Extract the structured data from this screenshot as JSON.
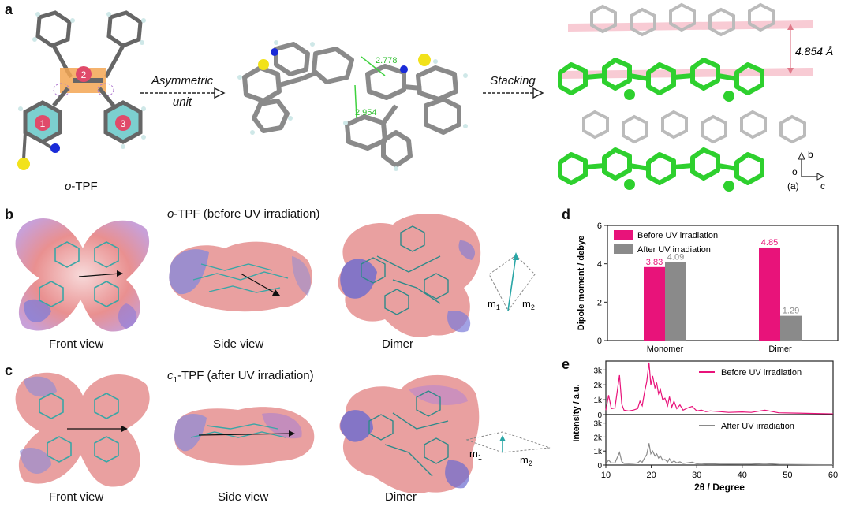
{
  "panels": {
    "a": {
      "label": "a",
      "molecule_caption": "o-TPF",
      "molecule_caption_italic": "o",
      "molecule_caption_rest": "-TPF",
      "ring_labels": [
        "1",
        "2",
        "3"
      ],
      "arrow1_label_line1": "Asymmetric",
      "arrow1_label_line2": "unit",
      "distance1": "2.778",
      "distance2": "2.954",
      "arrow2_label": "Stacking",
      "stack_distance": "4.854",
      "stack_distance_unit": "Å",
      "axis_b": "b",
      "axis_origin": "o",
      "axis_a": "(a)",
      "axis_c": "c"
    },
    "b": {
      "label": "b",
      "title_italic": "o",
      "title_rest": "-TPF (before UV irradiation)",
      "captions": [
        "Front view",
        "Side view",
        "Dimer"
      ],
      "m1": "m",
      "m1_sub": "1",
      "m2": "m",
      "m2_sub": "2"
    },
    "c": {
      "label": "c",
      "title_italic": "c",
      "title_sub": "1",
      "title_rest": "-TPF (after UV irradiation)",
      "captions": [
        "Front view",
        "Side view",
        "Dimer"
      ],
      "m1": "m",
      "m1_sub": "1",
      "m2": "m",
      "m2_sub": "2"
    },
    "d": {
      "label": "d"
    },
    "e": {
      "label": "e"
    }
  },
  "chart_data": [
    {
      "type": "bar",
      "panel": "d",
      "categories": [
        "Monomer",
        "Dimer"
      ],
      "series": [
        {
          "name": "Before UV irradiation",
          "values": [
            3.83,
            4.85
          ],
          "labels": [
            "3.83",
            "4.85"
          ],
          "color": "#e8137a"
        },
        {
          "name": "After UV irradiation",
          "values": [
            4.09,
            1.29
          ],
          "labels": [
            "4.09",
            "1.29"
          ],
          "color": "#8a8a8a"
        }
      ],
      "ylabel": "Dipole moment / debye",
      "ylim": [
        0,
        6
      ],
      "yticks": [
        "0",
        "2",
        "4",
        "6"
      ],
      "legend": "top-right"
    },
    {
      "type": "line",
      "panel": "e",
      "xlabel": "2θ / Degree",
      "ylabel": "Intensity / a.u.",
      "xlim": [
        10,
        60
      ],
      "xticks": [
        "10",
        "20",
        "30",
        "40",
        "50",
        "60"
      ],
      "subplots": [
        {
          "name": "Before UV irradiation",
          "color": "#e8137a",
          "ylim": [
            0,
            3600
          ],
          "yticks": [
            "0",
            "1k",
            "2k",
            "3k"
          ],
          "x": [
            10,
            10.6,
            11.2,
            12,
            13,
            13.5,
            14,
            15,
            16,
            17,
            17.5,
            18,
            18.5,
            19,
            19.5,
            19.9,
            20.3,
            20.8,
            21.2,
            21.6,
            22,
            22.5,
            23,
            23.6,
            24,
            24.5,
            25,
            25.6,
            26.3,
            27,
            28,
            29,
            30,
            31,
            32,
            33,
            35,
            37,
            40,
            42,
            45,
            48,
            52,
            55,
            58,
            60
          ],
          "y": [
            300,
            1300,
            400,
            450,
            2650,
            700,
            300,
            250,
            300,
            400,
            900,
            600,
            1500,
            2200,
            3500,
            2000,
            2600,
            1800,
            2100,
            1400,
            1700,
            1000,
            1100,
            600,
            1200,
            500,
            900,
            400,
            650,
            300,
            450,
            550,
            250,
            300,
            200,
            250,
            200,
            150,
            180,
            150,
            300,
            120,
            100,
            80,
            60,
            50
          ]
        },
        {
          "name": "After UV irradiation",
          "color": "#8a8a8a",
          "ylim": [
            0,
            3600
          ],
          "yticks": [
            "0",
            "1k",
            "2k",
            "3k"
          ],
          "x": [
            10,
            10.6,
            11.2,
            12,
            13,
            13.5,
            14,
            15,
            16,
            17,
            17.5,
            18,
            18.5,
            19,
            19.5,
            19.9,
            20.3,
            20.8,
            21.2,
            21.6,
            22,
            22.5,
            23,
            23.6,
            24,
            24.5,
            25,
            25.6,
            26.3,
            27,
            28,
            29,
            30,
            31,
            32,
            33,
            35,
            37,
            40,
            42,
            45,
            48,
            52,
            55,
            58,
            60
          ],
          "y": [
            100,
            350,
            150,
            150,
            900,
            250,
            120,
            100,
            120,
            150,
            300,
            200,
            500,
            750,
            1550,
            800,
            1000,
            650,
            800,
            500,
            650,
            350,
            400,
            220,
            450,
            180,
            300,
            150,
            230,
            110,
            160,
            200,
            90,
            110,
            80,
            90,
            70,
            60,
            70,
            60,
            110,
            50,
            40,
            30,
            25,
            20
          ]
        }
      ]
    }
  ]
}
